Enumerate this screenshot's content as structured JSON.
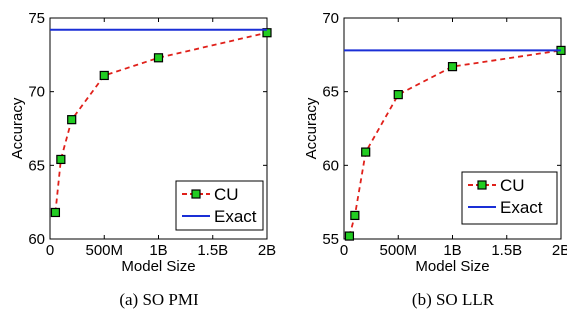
{
  "chart_data": [
    {
      "type": "line",
      "caption": "(a)  SO PMI",
      "xlabel": "Model Size",
      "ylabel": "Accuracy",
      "xlim": [
        0,
        2000
      ],
      "ylim": [
        60,
        75
      ],
      "xticks": [
        0,
        500,
        1000,
        1500,
        2000
      ],
      "xtick_labels": [
        "0",
        "500M",
        "1B",
        "1.5B",
        "2B"
      ],
      "yticks": [
        60,
        65,
        70,
        75
      ],
      "ytick_labels": [
        "60",
        "65",
        "70",
        "75"
      ],
      "legend_position": "bottom-right",
      "series": [
        {
          "name": "CU",
          "style": "dashed",
          "color": "#e0201a",
          "marker": "square",
          "marker_color": "#22cc22",
          "x": [
            50,
            100,
            200,
            500,
            1000,
            2000
          ],
          "y": [
            61.8,
            65.4,
            68.1,
            71.1,
            72.3,
            74.0
          ]
        },
        {
          "name": "Exact",
          "style": "solid",
          "color": "#1a2fd6",
          "x": [
            0,
            2000
          ],
          "y": [
            74.2,
            74.2
          ]
        }
      ]
    },
    {
      "type": "line",
      "caption": "(b)  SO LLR",
      "xlabel": "Model Size",
      "ylabel": "Accuracy",
      "xlim": [
        0,
        2000
      ],
      "ylim": [
        55,
        70
      ],
      "xticks": [
        0,
        500,
        1000,
        1500,
        2000
      ],
      "xtick_labels": [
        "0",
        "500M",
        "1B",
        "1.5B",
        "2B"
      ],
      "yticks": [
        55,
        60,
        65,
        70
      ],
      "ytick_labels": [
        "55",
        "60",
        "65",
        "70"
      ],
      "legend_position": "bottom-right",
      "series": [
        {
          "name": "CU",
          "style": "dashed",
          "color": "#e0201a",
          "marker": "square",
          "marker_color": "#22cc22",
          "x": [
            50,
            100,
            200,
            500,
            1000,
            2000
          ],
          "y": [
            55.2,
            56.6,
            60.9,
            64.8,
            66.7,
            67.8
          ]
        },
        {
          "name": "Exact",
          "style": "solid",
          "color": "#1a2fd6",
          "x": [
            0,
            2000
          ],
          "y": [
            67.8,
            67.8
          ]
        }
      ]
    }
  ]
}
